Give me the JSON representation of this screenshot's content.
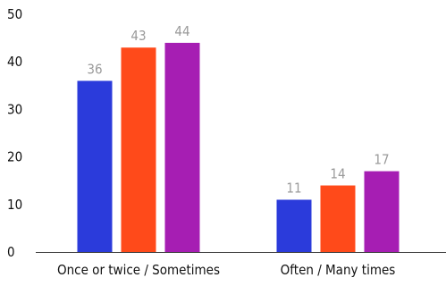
{
  "chart_data": {
    "type": "bar",
    "title": "",
    "xlabel": "",
    "ylabel": "",
    "categories": [
      "Once or twice / Sometimes",
      "Often / Many times"
    ],
    "series": [
      {
        "values": [
          36,
          11
        ],
        "color": "#2b3bdb"
      },
      {
        "values": [
          43,
          14
        ],
        "color": "#ff4a1a"
      },
      {
        "values": [
          44,
          17
        ],
        "color": "#a61eb3"
      }
    ],
    "ylim": [
      0,
      50
    ],
    "yticks": [
      0,
      10,
      20,
      30,
      40,
      50
    ],
    "grid": false,
    "data_labels": true,
    "data_label_color": "#9a9a9a",
    "axis_color": "#444444"
  }
}
